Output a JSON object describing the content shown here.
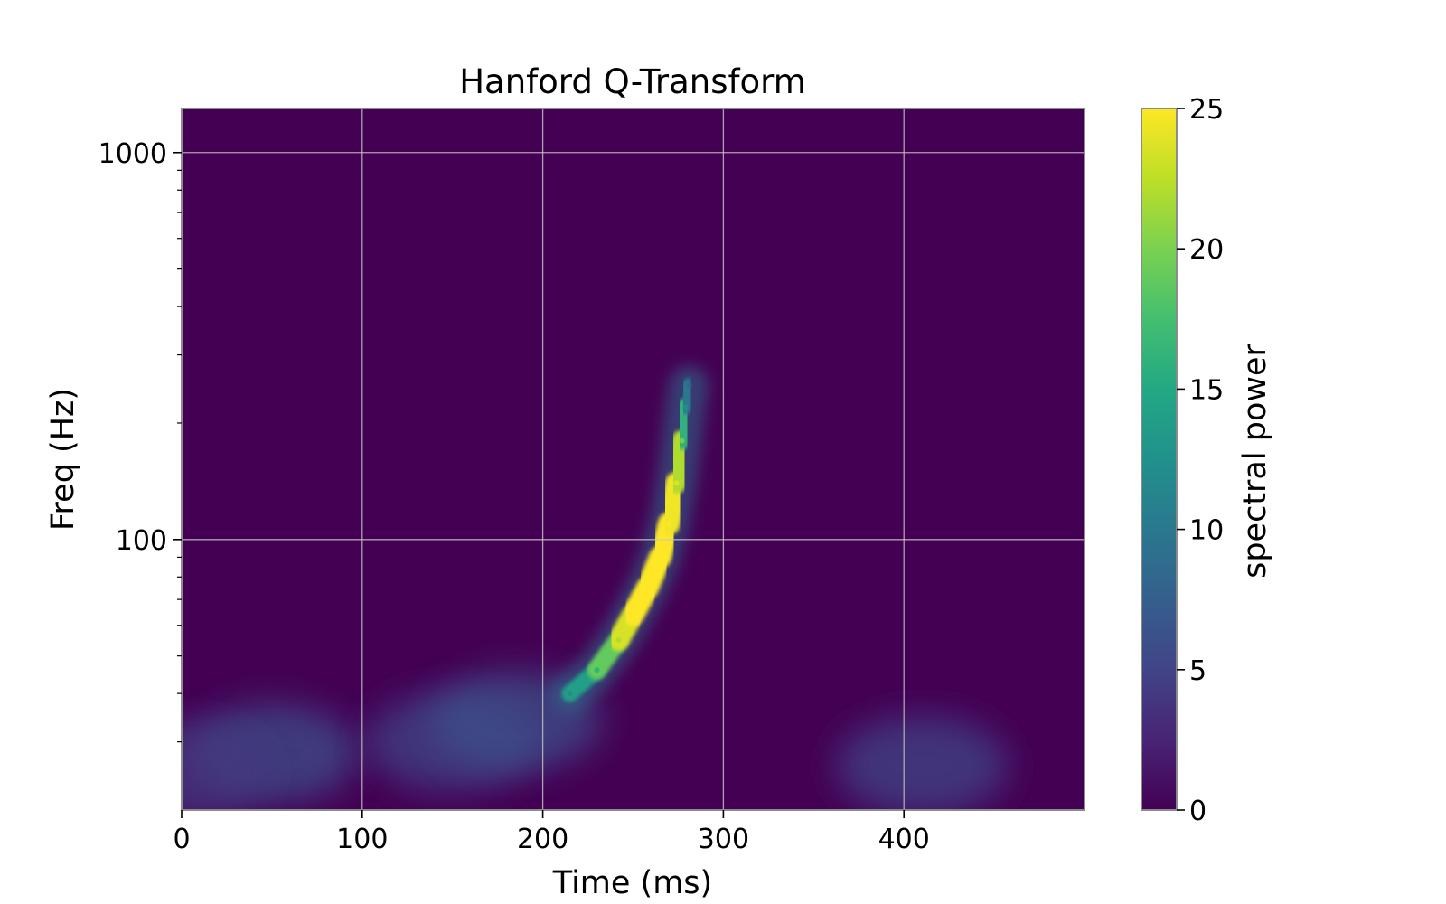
{
  "chart_data": {
    "type": "heatmap",
    "title": "Hanford Q-Transform",
    "xlabel": "Time (ms)",
    "ylabel": "Freq (Hz)",
    "colorbar_label": "spectral power",
    "xlim": [
      0,
      500
    ],
    "ylim": [
      20,
      1300
    ],
    "yscale": "log",
    "x_ticks": [
      0,
      100,
      200,
      300,
      400
    ],
    "x_tick_labels": [
      "0",
      "100",
      "200",
      "300",
      "400"
    ],
    "y_major_ticks": [
      100,
      1000
    ],
    "y_tick_labels": [
      "100",
      "1000"
    ],
    "y_minor_ticks": [
      30,
      40,
      50,
      60,
      70,
      80,
      90,
      200,
      300,
      400,
      500,
      600,
      700,
      800,
      900
    ],
    "color_range": [
      0,
      25
    ],
    "colorbar_ticks": [
      0,
      5,
      10,
      15,
      20,
      25
    ],
    "colorbar_tick_labels": [
      "0",
      "5",
      "10",
      "15",
      "20",
      "25"
    ],
    "colormap": "viridis",
    "grid": true,
    "chirp_track": [
      {
        "t": 215,
        "f": 40,
        "power": 12
      },
      {
        "t": 230,
        "f": 46,
        "power": 16
      },
      {
        "t": 242,
        "f": 55,
        "power": 22
      },
      {
        "t": 250,
        "f": 64,
        "power": 25
      },
      {
        "t": 258,
        "f": 75,
        "power": 25
      },
      {
        "t": 265,
        "f": 90,
        "power": 25
      },
      {
        "t": 270,
        "f": 110,
        "power": 25
      },
      {
        "t": 274,
        "f": 140,
        "power": 24
      },
      {
        "t": 277,
        "f": 180,
        "power": 20
      },
      {
        "t": 279,
        "f": 220,
        "power": 12
      },
      {
        "t": 281,
        "f": 250,
        "power": 8
      }
    ],
    "low_freq_blobs": [
      {
        "t": 50,
        "f": 28,
        "power": 6
      },
      {
        "t": 150,
        "f": 30,
        "power": 5
      },
      {
        "t": 185,
        "f": 34,
        "power": 6
      },
      {
        "t": 410,
        "f": 26,
        "power": 5
      },
      {
        "t": 0,
        "f": 25,
        "power": 4
      }
    ]
  }
}
